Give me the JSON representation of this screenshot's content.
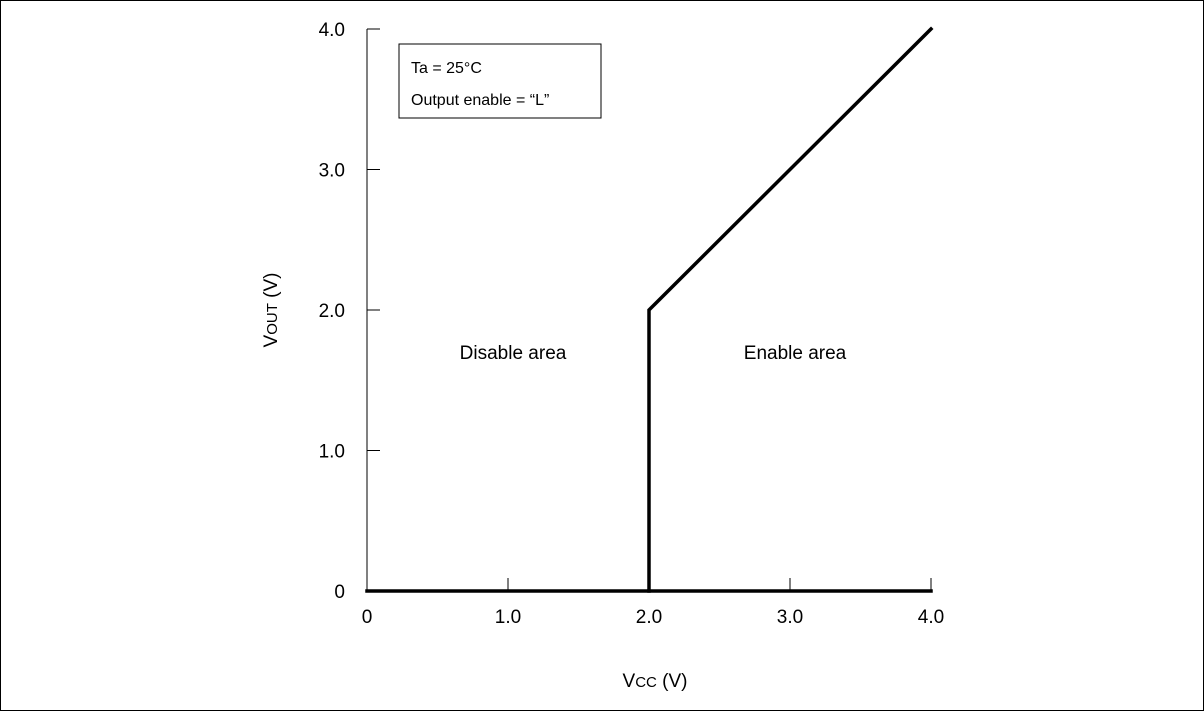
{
  "chart_data": {
    "type": "line",
    "xlabel": "Vcc  (V)",
    "ylabel": "Vout  (V)",
    "xlim": [
      0,
      4.0
    ],
    "ylim": [
      0,
      4.0
    ],
    "x_ticks": [
      0,
      1.0,
      2.0,
      3.0,
      4.0
    ],
    "x_tick_labels": [
      "0",
      "1.0",
      "2.0",
      "3.0",
      "4.0"
    ],
    "y_ticks": [
      0,
      1.0,
      2.0,
      3.0,
      4.0
    ],
    "y_tick_labels": [
      "0",
      "1.0",
      "2.0",
      "3.0",
      "4.0"
    ],
    "grid": false,
    "series": [
      {
        "x": [
          0,
          2.0,
          2.0,
          4.0
        ],
        "y": [
          0,
          0,
          2.0,
          4.0
        ]
      },
      {
        "x": [
          2.0,
          4.0
        ],
        "y": [
          0,
          0
        ]
      }
    ],
    "conditions": [
      "Ta = 25°C",
      "Output enable = “L”"
    ],
    "annotations": [
      {
        "text": "Disable area",
        "x": 1.0,
        "y": 1.7
      },
      {
        "text": "Enable area",
        "x": 3.0,
        "y": 1.7
      }
    ]
  },
  "colors": {
    "line": "#000000",
    "axis": "#000000",
    "background": "#ffffff"
  }
}
